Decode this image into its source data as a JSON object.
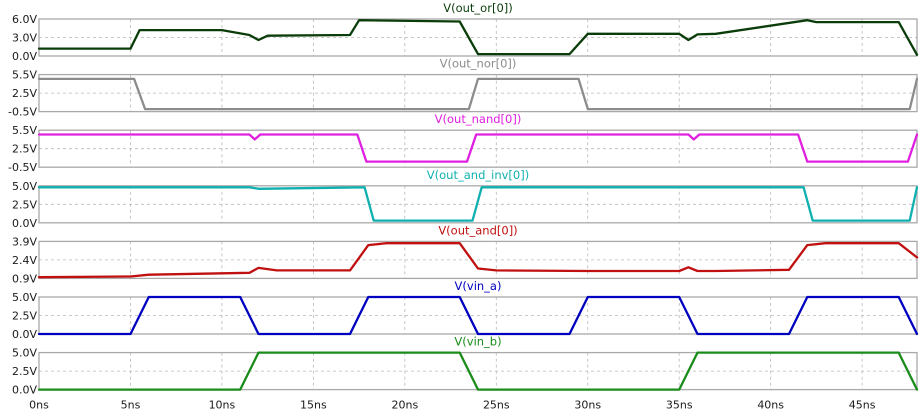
{
  "chart_data": [
    {
      "type": "line",
      "title": "V(out_or[0])",
      "color": "#0b3d0b",
      "yticks": [
        "6.0V",
        "3.0V",
        "0.0V"
      ],
      "ylim": [
        0,
        6
      ],
      "x": [
        0,
        5,
        5.5,
        10,
        11.5,
        12,
        12.5,
        17,
        17.5,
        23,
        24,
        29,
        30,
        35,
        35.5,
        36,
        37,
        42,
        42.5,
        47,
        48
      ],
      "values": [
        1.2,
        1.2,
        4.2,
        4.2,
        3.4,
        2.6,
        3.3,
        3.4,
        5.8,
        5.6,
        0.3,
        0.3,
        3.6,
        3.6,
        2.6,
        3.5,
        3.6,
        5.8,
        5.5,
        5.5,
        0.2
      ]
    },
    {
      "type": "line",
      "title": "V(out_nor[0])",
      "color": "#8c8c8c",
      "yticks": [
        "5.5V",
        "2.5V",
        "-0.5V"
      ],
      "ylim": [
        -0.5,
        5.5
      ],
      "x": [
        0,
        5.2,
        5.8,
        23.5,
        24,
        29.5,
        30,
        47.6,
        48
      ],
      "values": [
        4.8,
        4.8,
        -0.1,
        -0.1,
        4.8,
        4.8,
        -0.1,
        -0.1,
        4.8
      ]
    },
    {
      "type": "line",
      "title": "V(out_nand[0])",
      "color": "#e020e0",
      "yticks": [
        "5.5V",
        "2.5V",
        "-0.5V"
      ],
      "ylim": [
        -0.5,
        5.5
      ],
      "x": [
        0,
        11.5,
        11.8,
        12.1,
        17.4,
        17.9,
        23.4,
        23.9,
        35.5,
        35.8,
        36.1,
        41.5,
        42,
        47.5,
        48
      ],
      "values": [
        4.8,
        4.8,
        4.0,
        4.8,
        4.8,
        0.4,
        0.4,
        4.8,
        4.8,
        4.0,
        4.8,
        4.8,
        0.4,
        0.4,
        4.8
      ]
    },
    {
      "type": "line",
      "title": "V(out_and_inv[0])",
      "color": "#10b0b0",
      "yticks": [
        "5.0V",
        "2.5V",
        "0.0V"
      ],
      "ylim": [
        0,
        5
      ],
      "x": [
        0,
        11.5,
        12,
        17.8,
        18.3,
        23.7,
        24.2,
        41.8,
        42.3,
        47.6,
        48
      ],
      "values": [
        4.8,
        4.8,
        4.6,
        4.8,
        0.3,
        0.3,
        4.8,
        4.8,
        0.3,
        0.3,
        4.8
      ]
    },
    {
      "type": "line",
      "title": "V(out_and[0])",
      "color": "#c01010",
      "yticks": [
        "3.9V",
        "2.4V",
        "0.9V"
      ],
      "ylim": [
        0.9,
        3.9
      ],
      "x": [
        0,
        5,
        6,
        11.5,
        12,
        13,
        17,
        18,
        19,
        23,
        24,
        25,
        30,
        35,
        35.5,
        36,
        37,
        41,
        42,
        43,
        47,
        48
      ],
      "values": [
        1.0,
        1.05,
        1.2,
        1.35,
        1.75,
        1.55,
        1.55,
        3.6,
        3.75,
        3.75,
        1.7,
        1.55,
        1.5,
        1.5,
        1.8,
        1.5,
        1.5,
        1.6,
        3.6,
        3.75,
        3.75,
        2.6
      ]
    },
    {
      "type": "line",
      "title": "V(vin_a)",
      "color": "#0000c0",
      "yticks": [
        "5.0V",
        "2.5V",
        "0.0V"
      ],
      "ylim": [
        0,
        5
      ],
      "x": [
        0,
        5,
        6,
        11,
        12,
        17,
        18,
        23,
        24,
        29,
        30,
        35,
        36,
        41,
        42,
        47,
        48
      ],
      "values": [
        0,
        0,
        5,
        5,
        0,
        0,
        5,
        5,
        0,
        0,
        5,
        5,
        0,
        0,
        5,
        5,
        0
      ]
    },
    {
      "type": "line",
      "title": "V(vin_b)",
      "color": "#1a8c1a",
      "yticks": [
        "5.0V",
        "2.5V",
        "0.0V"
      ],
      "ylim": [
        0,
        5
      ],
      "x": [
        0,
        11,
        12,
        23,
        24,
        35,
        36,
        47,
        48
      ],
      "values": [
        0,
        0,
        5,
        5,
        0,
        0,
        5,
        5,
        0
      ]
    }
  ],
  "x_axis": {
    "ticks": [
      "0ns",
      "5ns",
      "10ns",
      "15ns",
      "20ns",
      "25ns",
      "30ns",
      "35ns",
      "40ns",
      "45ns"
    ],
    "tick_values": [
      0,
      5,
      10,
      15,
      20,
      25,
      30,
      35,
      40,
      45
    ],
    "xlim": [
      0,
      48
    ]
  }
}
